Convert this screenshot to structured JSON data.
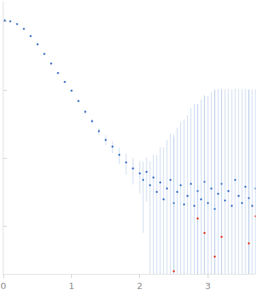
{
  "chart_data": {
    "type": "scatter",
    "log": "y",
    "grid": false,
    "tick_labels": "x",
    "xlim": [
      0,
      3.7
    ],
    "xticks": [
      0,
      1,
      2,
      3
    ],
    "ylim": [
      0.0002,
      2
    ],
    "yticks": [
      0.001,
      0.01,
      0.1,
      1
    ],
    "series": [
      {
        "color": "#3a6ec4",
        "marker": "circle",
        "x": [
          0.02,
          0.1,
          0.2,
          0.3,
          0.4,
          0.5,
          0.6,
          0.7,
          0.8,
          0.9,
          1.0,
          1.1,
          1.2,
          1.3,
          1.4,
          1.5,
          1.6,
          1.7,
          1.8,
          1.9,
          2.0,
          2.05,
          2.1,
          2.15,
          2.2,
          2.25,
          2.3,
          2.35,
          2.4,
          2.45,
          2.5,
          2.55,
          2.6,
          2.65,
          2.7,
          2.75,
          2.8,
          2.85,
          2.9,
          2.95,
          3.0,
          3.05,
          3.1,
          3.15,
          3.2,
          3.25,
          3.3,
          3.35,
          3.4,
          3.45,
          3.5,
          3.55,
          3.6,
          3.65,
          3.7
        ],
        "values": [
          1.05,
          1.02,
          0.93,
          0.79,
          0.62,
          0.47,
          0.34,
          0.245,
          0.178,
          0.132,
          0.098,
          0.069,
          0.048,
          0.035,
          0.025,
          0.0186,
          0.0148,
          0.0112,
          0.0087,
          0.0071,
          0.006,
          0.0048,
          0.0063,
          0.004,
          0.0052,
          0.0032,
          0.0044,
          0.0025,
          0.0036,
          0.0048,
          0.0022,
          0.0032,
          0.004,
          0.0021,
          0.0028,
          0.0042,
          0.002,
          0.0033,
          0.0025,
          0.0045,
          0.0022,
          0.0036,
          0.0018,
          0.003,
          0.0042,
          0.0024,
          0.0033,
          0.002,
          0.0048,
          0.0028,
          0.0022,
          0.0038,
          0.0026,
          0.002,
          0.0036
        ],
        "error": [
          0.01,
          0.008,
          0.008,
          0.007,
          0.006,
          0.005,
          0.004,
          0.003,
          0.003,
          0.003,
          0.003,
          0.003,
          0.003,
          0.003,
          0.003,
          0.003,
          0.003,
          0.003,
          0.003,
          0.003,
          0.003,
          0.004,
          0.004,
          0.005,
          0.006,
          0.008,
          0.01,
          0.012,
          0.015,
          0.018,
          0.02,
          0.025,
          0.03,
          0.035,
          0.04,
          0.05,
          0.06,
          0.06,
          0.07,
          0.08,
          0.08,
          0.09,
          0.1,
          0.1,
          0.1,
          0.1,
          0.1,
          0.1,
          0.1,
          0.1,
          0.1,
          0.1,
          0.1,
          0.1,
          0.1
        ]
      },
      {
        "color": "#e0301e",
        "marker": "circle",
        "x": [
          2.5,
          2.85,
          2.95,
          3.1,
          3.2,
          3.6,
          3.7
        ],
        "values": [
          0.00022,
          0.0013,
          0.0008,
          0.00036,
          0.0007,
          0.00056,
          0.0014
        ],
        "error": [
          0.02,
          0.06,
          0.08,
          0.1,
          0.1,
          0.1,
          0.1
        ]
      }
    ]
  }
}
